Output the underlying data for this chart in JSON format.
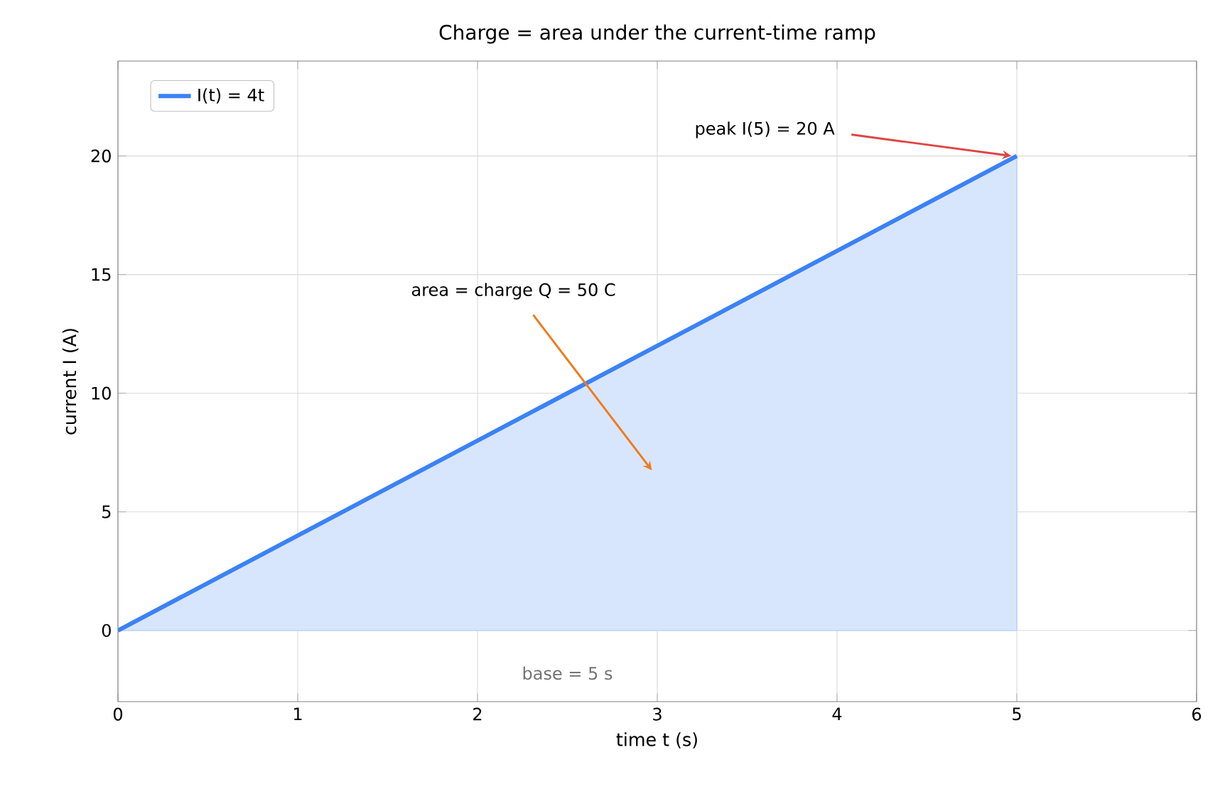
{
  "chart_data": {
    "type": "area",
    "title": "Charge = area under the current-time ramp",
    "xlabel": "time t (s)",
    "ylabel": "current I (A)",
    "x": [
      0,
      5
    ],
    "series": [
      {
        "name": "I(t) = 4t",
        "color": "#3b82f6",
        "values": [
          0,
          20
        ]
      }
    ],
    "xlim": [
      0,
      6
    ],
    "ylim": [
      -3,
      24
    ],
    "xticks": [
      0,
      1,
      2,
      3,
      4,
      5,
      6
    ],
    "yticks": [
      0,
      5,
      10,
      15,
      20
    ],
    "grid": true,
    "legend": "top left",
    "annotations": [
      {
        "text": "peak I(5) = 20 A",
        "x": 5,
        "y": 20
      },
      "area = charge Q = 50 C",
      "base = 5 s"
    ]
  }
}
